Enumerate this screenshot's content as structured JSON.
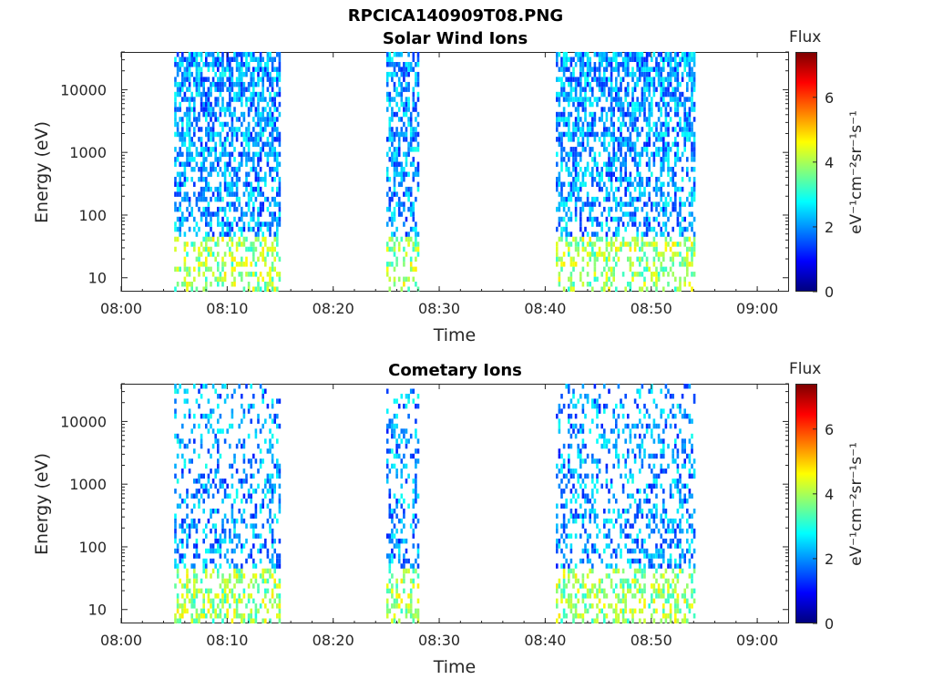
{
  "figure_title": "RPCICA140909T08.PNG",
  "chart_data": [
    {
      "type": "heatmap",
      "title": "Solar Wind Ions",
      "xlabel": "Time",
      "ylabel": "Energy (eV)",
      "yscale": "log",
      "x_ticks": [
        "08:00",
        "08:10",
        "08:20",
        "08:30",
        "08:40",
        "08:50",
        "09:00"
      ],
      "x_range": [
        "08:00",
        "09:03"
      ],
      "y_ticks": [
        "10",
        "100",
        "1000",
        "10000"
      ],
      "y_range": [
        6,
        40000
      ],
      "colorbar": {
        "label": "Flux",
        "units": "eV⁻¹cm⁻²sr⁻¹s⁻¹",
        "ticks": [
          "0",
          "2",
          "4",
          "6"
        ],
        "range": [
          0,
          7.4
        ],
        "colormap": "jet"
      },
      "activity_intervals": [
        {
          "start": "08:05",
          "end": "08:15"
        },
        {
          "start": "08:25",
          "end": "08:28"
        },
        {
          "start": "08:41",
          "end": "08:54"
        }
      ]
    },
    {
      "type": "heatmap",
      "title": "Cometary Ions",
      "xlabel": "Time",
      "ylabel": "Energy (eV)",
      "yscale": "log",
      "x_ticks": [
        "08:00",
        "08:10",
        "08:20",
        "08:30",
        "08:40",
        "08:50",
        "09:00"
      ],
      "x_range": [
        "08:00",
        "09:03"
      ],
      "y_ticks": [
        "10",
        "100",
        "1000",
        "10000"
      ],
      "y_range": [
        6,
        40000
      ],
      "colorbar": {
        "label": "Flux",
        "units": "eV⁻¹cm⁻²sr⁻¹s⁻¹",
        "ticks": [
          "0",
          "2",
          "4",
          "6"
        ],
        "range": [
          0,
          7.4
        ],
        "colormap": "jet"
      },
      "activity_intervals": [
        {
          "start": "08:05",
          "end": "08:15"
        },
        {
          "start": "08:25",
          "end": "08:28"
        },
        {
          "start": "08:41",
          "end": "08:54"
        }
      ]
    }
  ]
}
